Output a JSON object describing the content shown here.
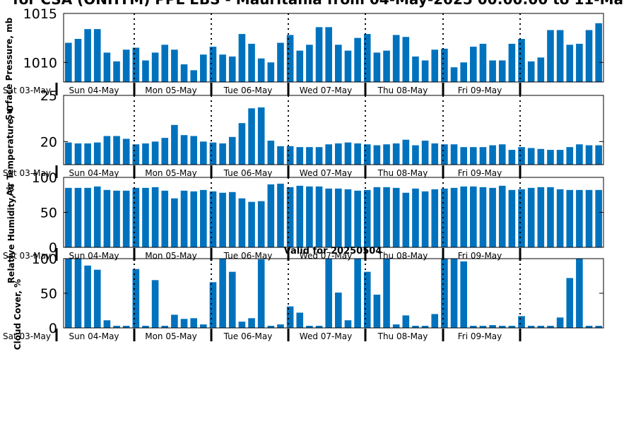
{
  "figure": {
    "title": "for CSA (ONHYM) PPL EBS  - Mauritania from 04-May-2025 00:00:00 to 11-Ma",
    "valid_label": "Valid for 20250504",
    "bar_color": "#0072bd",
    "day_labels": [
      "Sat 03-May",
      "Sun 04-May",
      "Mon 05-May",
      "Tue 06-May",
      "Wed 07-May",
      "Thu 08-May",
      "Fri 09-May"
    ]
  },
  "chart_data": [
    {
      "type": "bar",
      "ylabel": "Surface Pressure, mb",
      "ylim": [
        1008,
        1015
      ],
      "yticks": [
        1010,
        1015
      ],
      "values": [
        1012.0,
        1012.4,
        1013.4,
        1013.4,
        1011.0,
        1010.1,
        1011.3,
        1011.5,
        1010.2,
        1011.0,
        1011.8,
        1011.3,
        1009.8,
        1009.2,
        1010.8,
        1011.6,
        1010.8,
        1010.6,
        1012.9,
        1011.9,
        1010.4,
        1010.0,
        1012.0,
        1012.8,
        1011.2,
        1011.8,
        1013.6,
        1013.6,
        1011.8,
        1011.2,
        1012.5,
        1012.9,
        1011.0,
        1011.2,
        1012.8,
        1012.6,
        1010.6,
        1010.2,
        1011.3,
        1011.4,
        1009.5,
        1010.0,
        1011.6,
        1011.9,
        1010.2,
        1010.2,
        1011.9,
        1012.4,
        1010.1,
        1010.5,
        1013.3,
        1013.3,
        1011.8,
        1011.9,
        1013.3,
        1014.0
      ]
    },
    {
      "type": "bar",
      "ylabel": "Air Temperature, C",
      "ylim": [
        17.5,
        25
      ],
      "yticks": [
        20,
        25
      ],
      "values": [
        19.9,
        19.8,
        19.8,
        19.9,
        20.6,
        20.6,
        20.3,
        19.7,
        19.8,
        20.0,
        20.4,
        21.8,
        20.7,
        20.6,
        20.0,
        19.9,
        19.8,
        20.5,
        22.0,
        23.6,
        23.7,
        20.1,
        19.5,
        19.5,
        19.4,
        19.4,
        19.4,
        19.7,
        19.8,
        19.9,
        19.8,
        19.7,
        19.6,
        19.7,
        19.8,
        20.2,
        19.6,
        20.1,
        19.8,
        19.7,
        19.7,
        19.4,
        19.4,
        19.4,
        19.6,
        19.7,
        19.1,
        19.4,
        19.3,
        19.2,
        19.1,
        19.1,
        19.4,
        19.7,
        19.6,
        19.6
      ]
    },
    {
      "type": "bar",
      "ylabel": "Relative Humidity, %",
      "ylim": [
        0,
        100
      ],
      "yticks": [
        0,
        50,
        100
      ],
      "values": [
        85,
        85,
        85,
        87,
        82,
        81,
        81,
        85,
        85,
        86,
        81,
        70,
        81,
        80,
        82,
        80,
        78,
        79,
        70,
        65,
        66,
        90,
        91,
        86,
        88,
        87,
        87,
        84,
        84,
        83,
        81,
        82,
        86,
        86,
        85,
        78,
        84,
        80,
        83,
        84,
        85,
        87,
        87,
        86,
        85,
        88,
        82,
        83,
        85,
        86,
        86,
        83,
        82,
        82,
        82,
        82
      ]
    },
    {
      "type": "bar",
      "ylabel": "Cloud Cover, %",
      "ylim": [
        0,
        100
      ],
      "yticks": [
        0,
        50,
        100
      ],
      "values": [
        100,
        100,
        90,
        84,
        11,
        3,
        3,
        85,
        3,
        69,
        3,
        19,
        13,
        14,
        5,
        66,
        100,
        81,
        9,
        14,
        99,
        3,
        5,
        31,
        22,
        3,
        3,
        100,
        51,
        11,
        100,
        81,
        48,
        100,
        5,
        18,
        3,
        3,
        20,
        100,
        100,
        96,
        3,
        3,
        4,
        3,
        3,
        17,
        3,
        3,
        3,
        15,
        72,
        100,
        3,
        3
      ]
    }
  ]
}
